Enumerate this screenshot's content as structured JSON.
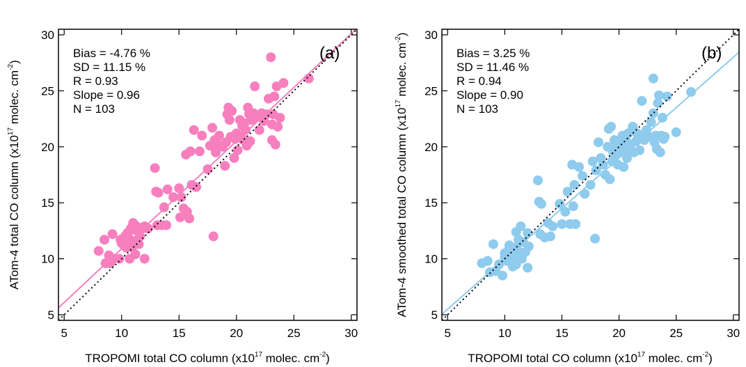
{
  "chart_data": [
    {
      "type": "scatter",
      "panel": "(a)",
      "xlabel": {
        "pre": "TROPOMI total CO column (x10",
        "sup": "17",
        "mid": " molec. cm",
        "sup2": "-2",
        "post": ")"
      },
      "ylabel": {
        "pre": "ATom-4 total CO column (x10",
        "sup": "17",
        "mid": " molec. cm",
        "sup2": "-2",
        "post": ")"
      },
      "xlim": [
        4.5,
        30.5
      ],
      "ylim": [
        4.5,
        30.5
      ],
      "xticks": [
        5,
        10,
        15,
        20,
        25,
        30
      ],
      "yticks": [
        5,
        10,
        15,
        20,
        25,
        30
      ],
      "stats": [
        "Bias = -4.76 %",
        "SD = 11.15 %",
        "R = 0.93",
        "Slope = 0.96",
        "N = 103"
      ],
      "color": "#f77fbe",
      "fit": {
        "slope": 0.96,
        "intercept": 1.3
      },
      "one_to_one": true,
      "points": [
        [
          8.0,
          10.7
        ],
        [
          8.5,
          11.7
        ],
        [
          8.6,
          9.6
        ],
        [
          8.9,
          10.3
        ],
        [
          9.0,
          9.6
        ],
        [
          9.2,
          12.2
        ],
        [
          9.3,
          10.0
        ],
        [
          9.8,
          10.0
        ],
        [
          9.9,
          11.7
        ],
        [
          10.0,
          11.4
        ],
        [
          10.2,
          11.2
        ],
        [
          10.3,
          12.0
        ],
        [
          10.4,
          11.0
        ],
        [
          10.5,
          11.7
        ],
        [
          10.5,
          12.3
        ],
        [
          10.6,
          11.9
        ],
        [
          10.7,
          10.0
        ],
        [
          10.8,
          12.7
        ],
        [
          10.9,
          11.0
        ],
        [
          11.0,
          11.3
        ],
        [
          11.0,
          13.2
        ],
        [
          11.1,
          12.6
        ],
        [
          11.1,
          11.5
        ],
        [
          11.2,
          10.4
        ],
        [
          11.3,
          12.9
        ],
        [
          11.4,
          12.5
        ],
        [
          11.5,
          11.3
        ],
        [
          11.6,
          12.0
        ],
        [
          11.8,
          12.7
        ],
        [
          12.0,
          12.9
        ],
        [
          12.0,
          10.0
        ],
        [
          12.3,
          12.7
        ],
        [
          12.9,
          18.1
        ],
        [
          13.0,
          16.0
        ],
        [
          13.1,
          13.0
        ],
        [
          13.2,
          15.9
        ],
        [
          13.5,
          13.0
        ],
        [
          13.7,
          14.6
        ],
        [
          13.9,
          13.0
        ],
        [
          14.0,
          16.2
        ],
        [
          14.5,
          15.5
        ],
        [
          15.0,
          16.3
        ],
        [
          15.1,
          13.7
        ],
        [
          15.2,
          15.5
        ],
        [
          15.4,
          14.5
        ],
        [
          15.6,
          19.3
        ],
        [
          15.7,
          14.2
        ],
        [
          15.9,
          13.6
        ],
        [
          16.0,
          19.6
        ],
        [
          16.1,
          16.6
        ],
        [
          16.3,
          21.5
        ],
        [
          16.5,
          16.4
        ],
        [
          16.8,
          19.6
        ],
        [
          17.0,
          21.0
        ],
        [
          17.5,
          18.0
        ],
        [
          17.7,
          20.1
        ],
        [
          17.9,
          21.7
        ],
        [
          18.0,
          12.0
        ],
        [
          18.1,
          20.6
        ],
        [
          18.2,
          19.5
        ],
        [
          18.3,
          20.3
        ],
        [
          18.5,
          21.0
        ],
        [
          18.8,
          20.0
        ],
        [
          19.0,
          18.3
        ],
        [
          19.1,
          20.4
        ],
        [
          19.2,
          22.9
        ],
        [
          19.3,
          23.5
        ],
        [
          19.4,
          22.4
        ],
        [
          19.5,
          20.9
        ],
        [
          19.6,
          23.2
        ],
        [
          19.8,
          19.0
        ],
        [
          19.9,
          20.7
        ],
        [
          20.0,
          21.2
        ],
        [
          20.1,
          19.7
        ],
        [
          20.3,
          22.4
        ],
        [
          20.4,
          20.9
        ],
        [
          20.5,
          21.9
        ],
        [
          20.6,
          20.6
        ],
        [
          20.7,
          22.1
        ],
        [
          20.8,
          21.5
        ],
        [
          20.9,
          20.1
        ],
        [
          21.0,
          23.5
        ],
        [
          21.1,
          22.9
        ],
        [
          21.2,
          20.5
        ],
        [
          21.3,
          22.4
        ],
        [
          21.5,
          23.0
        ],
        [
          21.6,
          25.4
        ],
        [
          21.8,
          22.7
        ],
        [
          22.0,
          21.5
        ],
        [
          22.2,
          23.0
        ],
        [
          22.4,
          22.3
        ],
        [
          22.6,
          22.9
        ],
        [
          22.8,
          24.3
        ],
        [
          23.0,
          28.0
        ],
        [
          23.1,
          20.6
        ],
        [
          23.1,
          22.0
        ],
        [
          23.2,
          22.9
        ],
        [
          23.3,
          24.5
        ],
        [
          23.4,
          20.2
        ],
        [
          23.5,
          25.4
        ],
        [
          23.6,
          21.8
        ],
        [
          23.8,
          22.6
        ],
        [
          24.1,
          25.7
        ],
        [
          26.3,
          26.1
        ]
      ]
    },
    {
      "type": "scatter",
      "panel": "(b)",
      "xlabel": {
        "pre": "TROPOMI total CO column (x10",
        "sup": "17",
        "mid": " molec. cm",
        "sup2": "-2",
        "post": ")"
      },
      "ylabel": {
        "pre": "ATom-4 smoothed total CO column (x10",
        "sup": "17",
        "mid": " molec. cm",
        "sup2": "-2",
        "post": ")"
      },
      "xlim": [
        4.5,
        30.5
      ],
      "ylim": [
        4.5,
        30.5
      ],
      "xticks": [
        5,
        10,
        15,
        20,
        25,
        30
      ],
      "yticks": [
        5,
        10,
        15,
        20,
        25,
        30
      ],
      "stats": [
        "Bias = 3.25 %",
        "SD = 11.46 %",
        "R = 0.94",
        "Slope = 0.90",
        "N = 103"
      ],
      "color": "#8ecbed",
      "fit": {
        "slope": 0.9,
        "intercept": 1.0
      },
      "one_to_one": true,
      "points": [
        [
          8.0,
          9.6
        ],
        [
          8.5,
          9.8
        ],
        [
          8.7,
          8.8
        ],
        [
          9.0,
          11.3
        ],
        [
          9.2,
          8.9
        ],
        [
          9.5,
          9.5
        ],
        [
          9.8,
          8.5
        ],
        [
          10.0,
          10.1
        ],
        [
          10.0,
          10.5
        ],
        [
          10.2,
          9.8
        ],
        [
          10.3,
          10.7
        ],
        [
          10.4,
          11.2
        ],
        [
          10.5,
          9.9
        ],
        [
          10.6,
          10.6
        ],
        [
          10.7,
          9.3
        ],
        [
          10.8,
          10.3
        ],
        [
          10.9,
          11.0
        ],
        [
          11.0,
          12.4
        ],
        [
          11.0,
          9.5
        ],
        [
          11.1,
          10.8
        ],
        [
          11.2,
          11.7
        ],
        [
          11.3,
          10.2
        ],
        [
          11.4,
          12.9
        ],
        [
          11.5,
          10.0
        ],
        [
          11.6,
          11.5
        ],
        [
          11.8,
          10.6
        ],
        [
          12.0,
          12.3
        ],
        [
          12.0,
          9.2
        ],
        [
          12.1,
          11.1
        ],
        [
          12.9,
          17.0
        ],
        [
          13.0,
          15.1
        ],
        [
          13.1,
          12.2
        ],
        [
          13.2,
          14.9
        ],
        [
          13.5,
          11.9
        ],
        [
          13.8,
          13.2
        ],
        [
          14.0,
          12.0
        ],
        [
          14.2,
          12.9
        ],
        [
          14.8,
          14.9
        ],
        [
          15.0,
          13.1
        ],
        [
          15.3,
          14.2
        ],
        [
          15.5,
          16.0
        ],
        [
          15.7,
          13.1
        ],
        [
          15.9,
          18.4
        ],
        [
          16.0,
          14.7
        ],
        [
          16.1,
          16.6
        ],
        [
          16.2,
          13.1
        ],
        [
          16.5,
          18.2
        ],
        [
          16.8,
          17.4
        ],
        [
          17.0,
          15.8
        ],
        [
          17.5,
          16.6
        ],
        [
          17.7,
          18.7
        ],
        [
          17.9,
          11.8
        ],
        [
          18.0,
          17.9
        ],
        [
          18.2,
          20.4
        ],
        [
          18.4,
          19.0
        ],
        [
          18.6,
          18.4
        ],
        [
          18.8,
          17.5
        ],
        [
          19.0,
          20.0
        ],
        [
          19.1,
          21.6
        ],
        [
          19.2,
          17.1
        ],
        [
          19.3,
          21.8
        ],
        [
          19.4,
          18.7
        ],
        [
          19.5,
          19.5
        ],
        [
          19.6,
          20.6
        ],
        [
          19.7,
          19.2
        ],
        [
          19.8,
          20.0
        ],
        [
          19.9,
          18.4
        ],
        [
          20.0,
          20.4
        ],
        [
          20.1,
          19.5
        ],
        [
          20.3,
          21.0
        ],
        [
          20.4,
          18.2
        ],
        [
          20.5,
          19.9
        ],
        [
          20.6,
          20.6
        ],
        [
          20.7,
          19.0
        ],
        [
          20.8,
          21.2
        ],
        [
          20.9,
          19.7
        ],
        [
          21.0,
          20.2
        ],
        [
          21.2,
          21.8
        ],
        [
          21.3,
          19.5
        ],
        [
          21.5,
          20.5
        ],
        [
          21.6,
          21.2
        ],
        [
          21.8,
          19.7
        ],
        [
          22.0,
          24.1
        ],
        [
          22.0,
          20.9
        ],
        [
          22.2,
          20.6
        ],
        [
          22.4,
          21.5
        ],
        [
          22.6,
          20.9
        ],
        [
          22.8,
          22.2
        ],
        [
          23.0,
          26.1
        ],
        [
          23.0,
          23.0
        ],
        [
          23.1,
          20.4
        ],
        [
          23.2,
          21.0
        ],
        [
          23.3,
          19.8
        ],
        [
          23.4,
          23.9
        ],
        [
          23.5,
          24.6
        ],
        [
          23.6,
          19.5
        ],
        [
          23.7,
          21.0
        ],
        [
          23.8,
          22.6
        ],
        [
          23.9,
          20.7
        ],
        [
          24.2,
          24.5
        ],
        [
          24.0,
          20.9
        ],
        [
          26.3,
          24.9
        ],
        [
          25.0,
          21.3
        ]
      ]
    }
  ]
}
